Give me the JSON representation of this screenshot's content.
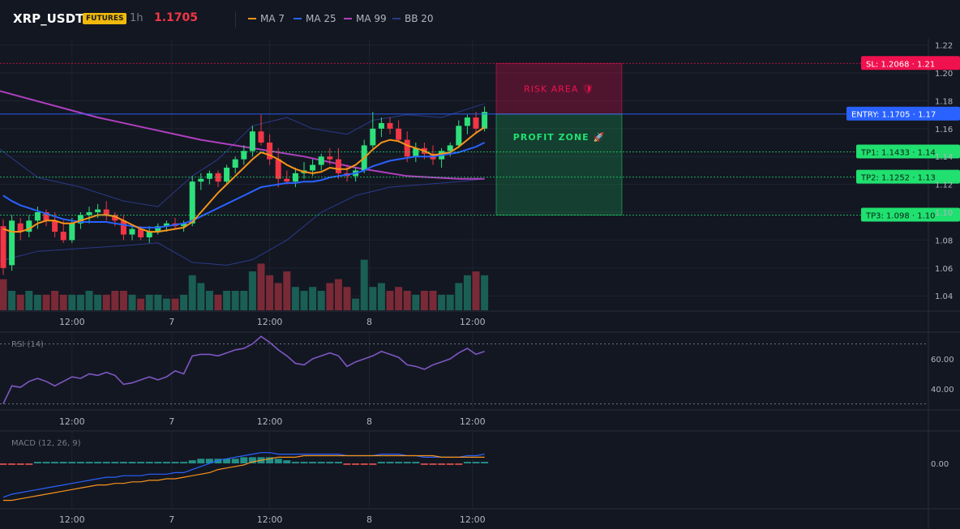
{
  "header": {
    "symbol": "XRP_USDT",
    "badge": "FUTURES",
    "timeframe": "1h",
    "price": "1.1705",
    "legend": [
      {
        "label": "MA 7",
        "color": "#f7931a"
      },
      {
        "label": "MA 25",
        "color": "#2962ff"
      },
      {
        "label": "MA 99",
        "color": "#b040c0"
      },
      {
        "label": "BB 20",
        "color": "#2b3a8a"
      }
    ]
  },
  "colors": {
    "up": "#26a69a",
    "up_bright": "#2ee07a",
    "down": "#f23645",
    "sl": "#f0114f",
    "tp": "#20e070",
    "entry": "#2962ff"
  },
  "chart_data": [
    {
      "type": "candlestick",
      "ylim": [
        1.03,
        1.22
      ],
      "y_ticks": [
        "1.22",
        "1.20",
        "1.18",
        "1.16",
        "1.14",
        "1.12",
        "1.10",
        "1.08",
        "1.06",
        "1.04"
      ],
      "x_tick_labels": [
        "12:00",
        "7",
        "12:00",
        "8",
        "12:00"
      ],
      "ohlc": [
        [
          1.09,
          1.095,
          1.055,
          1.06
        ],
        [
          1.062,
          1.098,
          1.058,
          1.094
        ],
        [
          1.092,
          1.096,
          1.08,
          1.086
        ],
        [
          1.086,
          1.098,
          1.082,
          1.094
        ],
        [
          1.094,
          1.104,
          1.088,
          1.1
        ],
        [
          1.1,
          1.102,
          1.09,
          1.094
        ],
        [
          1.094,
          1.1,
          1.082,
          1.086
        ],
        [
          1.086,
          1.094,
          1.078,
          1.08
        ],
        [
          1.08,
          1.096,
          1.078,
          1.092
        ],
        [
          1.092,
          1.1,
          1.088,
          1.098
        ],
        [
          1.098,
          1.104,
          1.092,
          1.1
        ],
        [
          1.1,
          1.106,
          1.096,
          1.102
        ],
        [
          1.102,
          1.108,
          1.094,
          1.098
        ],
        [
          1.098,
          1.1,
          1.09,
          1.094
        ],
        [
          1.094,
          1.098,
          1.08,
          1.084
        ],
        [
          1.084,
          1.09,
          1.08,
          1.088
        ],
        [
          1.088,
          1.09,
          1.08,
          1.082
        ],
        [
          1.082,
          1.09,
          1.078,
          1.086
        ],
        [
          1.086,
          1.092,
          1.084,
          1.09
        ],
        [
          1.09,
          1.094,
          1.086,
          1.092
        ],
        [
          1.092,
          1.096,
          1.088,
          1.09
        ],
        [
          1.09,
          1.094,
          1.086,
          1.092
        ],
        [
          1.092,
          1.126,
          1.09,
          1.122
        ],
        [
          1.122,
          1.128,
          1.116,
          1.124
        ],
        [
          1.124,
          1.13,
          1.12,
          1.128
        ],
        [
          1.128,
          1.13,
          1.118,
          1.122
        ],
        [
          1.122,
          1.134,
          1.12,
          1.132
        ],
        [
          1.132,
          1.14,
          1.128,
          1.138
        ],
        [
          1.138,
          1.148,
          1.134,
          1.144
        ],
        [
          1.144,
          1.162,
          1.14,
          1.158
        ],
        [
          1.158,
          1.17,
          1.148,
          1.15
        ],
        [
          1.15,
          1.156,
          1.134,
          1.138
        ],
        [
          1.138,
          1.146,
          1.118,
          1.124
        ],
        [
          1.124,
          1.13,
          1.12,
          1.122
        ],
        [
          1.122,
          1.132,
          1.118,
          1.128
        ],
        [
          1.128,
          1.136,
          1.124,
          1.13
        ],
        [
          1.13,
          1.138,
          1.126,
          1.134
        ],
        [
          1.134,
          1.142,
          1.13,
          1.14
        ],
        [
          1.14,
          1.146,
          1.134,
          1.138
        ],
        [
          1.138,
          1.146,
          1.124,
          1.128
        ],
        [
          1.128,
          1.134,
          1.122,
          1.126
        ],
        [
          1.126,
          1.132,
          1.122,
          1.13
        ],
        [
          1.13,
          1.152,
          1.128,
          1.148
        ],
        [
          1.148,
          1.172,
          1.146,
          1.16
        ],
        [
          1.16,
          1.168,
          1.154,
          1.164
        ],
        [
          1.164,
          1.168,
          1.156,
          1.16
        ],
        [
          1.16,
          1.166,
          1.15,
          1.152
        ],
        [
          1.152,
          1.158,
          1.136,
          1.14
        ],
        [
          1.14,
          1.15,
          1.136,
          1.146
        ],
        [
          1.146,
          1.15,
          1.138,
          1.142
        ],
        [
          1.142,
          1.148,
          1.134,
          1.138
        ],
        [
          1.138,
          1.146,
          1.132,
          1.144
        ],
        [
          1.144,
          1.15,
          1.14,
          1.148
        ],
        [
          1.148,
          1.166,
          1.146,
          1.162
        ],
        [
          1.162,
          1.17,
          1.156,
          1.168
        ],
        [
          1.168,
          1.172,
          1.156,
          1.16
        ],
        [
          1.16,
          1.176,
          1.158,
          1.172
        ]
      ],
      "volume": [
        8,
        5,
        4,
        5,
        4,
        4,
        5,
        4,
        4,
        4,
        5,
        4,
        4,
        5,
        5,
        4,
        3,
        4,
        4,
        3,
        3,
        4,
        9,
        7,
        5,
        4,
        5,
        5,
        5,
        10,
        12,
        9,
        7,
        10,
        6,
        5,
        6,
        5,
        7,
        8,
        6,
        3,
        13,
        6,
        7,
        5,
        6,
        5,
        4,
        5,
        5,
        4,
        4,
        7,
        9,
        10,
        9
      ],
      "ma7": [
        1.088,
        1.086,
        1.086,
        1.088,
        1.092,
        1.094,
        1.094,
        1.092,
        1.092,
        1.094,
        1.096,
        1.098,
        1.098,
        1.097,
        1.094,
        1.091,
        1.088,
        1.086,
        1.086,
        1.087,
        1.088,
        1.089,
        1.093,
        1.1,
        1.107,
        1.114,
        1.12,
        1.126,
        1.132,
        1.138,
        1.143,
        1.141,
        1.138,
        1.134,
        1.131,
        1.129,
        1.128,
        1.129,
        1.132,
        1.131,
        1.131,
        1.134,
        1.139,
        1.145,
        1.15,
        1.152,
        1.151,
        1.148,
        1.146,
        1.144,
        1.141,
        1.142,
        1.143,
        1.147,
        1.152,
        1.157,
        1.161
      ],
      "ma25": [
        1.112,
        1.108,
        1.105,
        1.103,
        1.101,
        1.099,
        1.097,
        1.095,
        1.094,
        1.093,
        1.093,
        1.093,
        1.093,
        1.092,
        1.091,
        1.09,
        1.089,
        1.089,
        1.089,
        1.09,
        1.091,
        1.092,
        1.094,
        1.097,
        1.1,
        1.103,
        1.106,
        1.109,
        1.112,
        1.115,
        1.118,
        1.119,
        1.12,
        1.121,
        1.121,
        1.122,
        1.122,
        1.123,
        1.125,
        1.126,
        1.127,
        1.128,
        1.13,
        1.133,
        1.135,
        1.137,
        1.138,
        1.139,
        1.14,
        1.14,
        1.14,
        1.141,
        1.142,
        1.143,
        1.145,
        1.147,
        1.15
      ],
      "ma99_points": [
        [
          -1,
          1.188
        ],
        [
          5,
          1.178
        ],
        [
          11,
          1.168
        ],
        [
          17,
          1.16
        ],
        [
          23,
          1.152
        ],
        [
          29,
          1.146
        ],
        [
          35,
          1.14
        ],
        [
          41,
          1.132
        ],
        [
          47,
          1.126
        ],
        [
          53,
          1.124
        ],
        [
          56,
          1.124
        ]
      ],
      "bb_upper_points": [
        [
          -1,
          1.148
        ],
        [
          4,
          1.125
        ],
        [
          9,
          1.118
        ],
        [
          14,
          1.108
        ],
        [
          18,
          1.104
        ],
        [
          22,
          1.126
        ],
        [
          25,
          1.138
        ],
        [
          29,
          1.162
        ],
        [
          33,
          1.168
        ],
        [
          36,
          1.16
        ],
        [
          40,
          1.156
        ],
        [
          43,
          1.166
        ],
        [
          47,
          1.17
        ],
        [
          51,
          1.168
        ],
        [
          55,
          1.176
        ],
        [
          56,
          1.178
        ]
      ],
      "bb_lower_points": [
        [
          -1,
          1.064
        ],
        [
          4,
          1.072
        ],
        [
          9,
          1.074
        ],
        [
          14,
          1.076
        ],
        [
          18,
          1.078
        ],
        [
          22,
          1.064
        ],
        [
          26,
          1.062
        ],
        [
          29,
          1.066
        ],
        [
          33,
          1.08
        ],
        [
          37,
          1.1
        ],
        [
          41,
          1.112
        ],
        [
          45,
          1.118
        ],
        [
          49,
          1.12
        ],
        [
          53,
          1.122
        ],
        [
          56,
          1.124
        ]
      ],
      "levels": [
        {
          "name": "sl",
          "label": "SL: 1.2068",
          "axis": "1.21",
          "value": 1.2068
        },
        {
          "name": "entry",
          "label": "ENTRY: 1.1705",
          "axis": "1.17",
          "value": 1.1705
        },
        {
          "name": "tp1",
          "label": "TP1: 1.1433",
          "axis": "1.14",
          "value": 1.1433
        },
        {
          "name": "tp2",
          "label": "TP2: 1.1252",
          "axis": "1.13",
          "value": 1.1252
        },
        {
          "name": "tp3",
          "label": "TP3: 1.098",
          "axis": "1.10",
          "value": 1.098
        }
      ],
      "zones": {
        "risk": "RISK AREA",
        "risk_icon": "🛡",
        "profit": "PROFIT ZONE",
        "profit_icon": "🚀"
      }
    },
    {
      "type": "line",
      "title": "RSI (14)",
      "ylim": [
        25,
        80
      ],
      "bands": [
        70,
        30
      ],
      "y_ticks": [
        "60.00",
        "40.00"
      ],
      "values": [
        30,
        42,
        41,
        45,
        47,
        45,
        42,
        45,
        48,
        47,
        50,
        49,
        51,
        49,
        43,
        44,
        46,
        48,
        46,
        48,
        52,
        50,
        62,
        63,
        63,
        62,
        64,
        66,
        67,
        70,
        75,
        71,
        66,
        62,
        57,
        56,
        60,
        62,
        64,
        62,
        55,
        58,
        60,
        62,
        65,
        63,
        61,
        56,
        55,
        53,
        56,
        58,
        60,
        64,
        67,
        63,
        65
      ]
    },
    {
      "type": "line",
      "title": "MACD (12, 26, 9)",
      "ylim": [
        -0.026,
        0.012
      ],
      "y_ticks": [
        "0.00"
      ],
      "macd": [
        -0.022,
        -0.02,
        -0.019,
        -0.018,
        -0.017,
        -0.016,
        -0.015,
        -0.014,
        -0.013,
        -0.012,
        -0.011,
        -0.01,
        -0.009,
        -0.009,
        -0.008,
        -0.008,
        -0.008,
        -0.007,
        -0.007,
        -0.007,
        -0.006,
        -0.006,
        -0.004,
        -0.002,
        0.0,
        0.002,
        0.003,
        0.004,
        0.005,
        0.006,
        0.007,
        0.007,
        0.006,
        0.006,
        0.006,
        0.006,
        0.006,
        0.006,
        0.006,
        0.006,
        0.005,
        0.005,
        0.005,
        0.005,
        0.006,
        0.006,
        0.006,
        0.005,
        0.005,
        0.004,
        0.004,
        0.004,
        0.004,
        0.004,
        0.005,
        0.005,
        0.006
      ],
      "signal": [
        -0.024,
        -0.024,
        -0.023,
        -0.022,
        -0.021,
        -0.02,
        -0.019,
        -0.018,
        -0.017,
        -0.016,
        -0.015,
        -0.014,
        -0.014,
        -0.013,
        -0.013,
        -0.012,
        -0.012,
        -0.011,
        -0.011,
        -0.01,
        -0.01,
        -0.009,
        -0.008,
        -0.007,
        -0.006,
        -0.004,
        -0.003,
        -0.002,
        -0.001,
        0.001,
        0.002,
        0.003,
        0.004,
        0.004,
        0.004,
        0.005,
        0.005,
        0.005,
        0.005,
        0.005,
        0.005,
        0.005,
        0.005,
        0.005,
        0.005,
        0.005,
        0.005,
        0.005,
        0.005,
        0.005,
        0.005,
        0.004,
        0.004,
        0.004,
        0.004,
        0.004,
        0.004
      ],
      "histogram": [
        -0.001,
        -0.001,
        -0.001,
        -0.001,
        0.001,
        0.001,
        0.001,
        0.001,
        0.001,
        0.001,
        0.001,
        0.001,
        0.001,
        0.001,
        0.001,
        0.001,
        0.001,
        0.001,
        0.001,
        0.001,
        0.001,
        0.001,
        0.002,
        0.003,
        0.003,
        0.003,
        0.003,
        0.003,
        0.004,
        0.004,
        0.004,
        0.004,
        0.003,
        0.002,
        0.001,
        0.001,
        0.001,
        0.001,
        0.001,
        0.001,
        -0.001,
        -0.001,
        -0.001,
        -0.001,
        0.001,
        0.001,
        0.001,
        0.001,
        0.001,
        -0.001,
        -0.001,
        -0.001,
        -0.001,
        -0.001,
        0.001,
        0.001,
        0.001
      ]
    }
  ]
}
